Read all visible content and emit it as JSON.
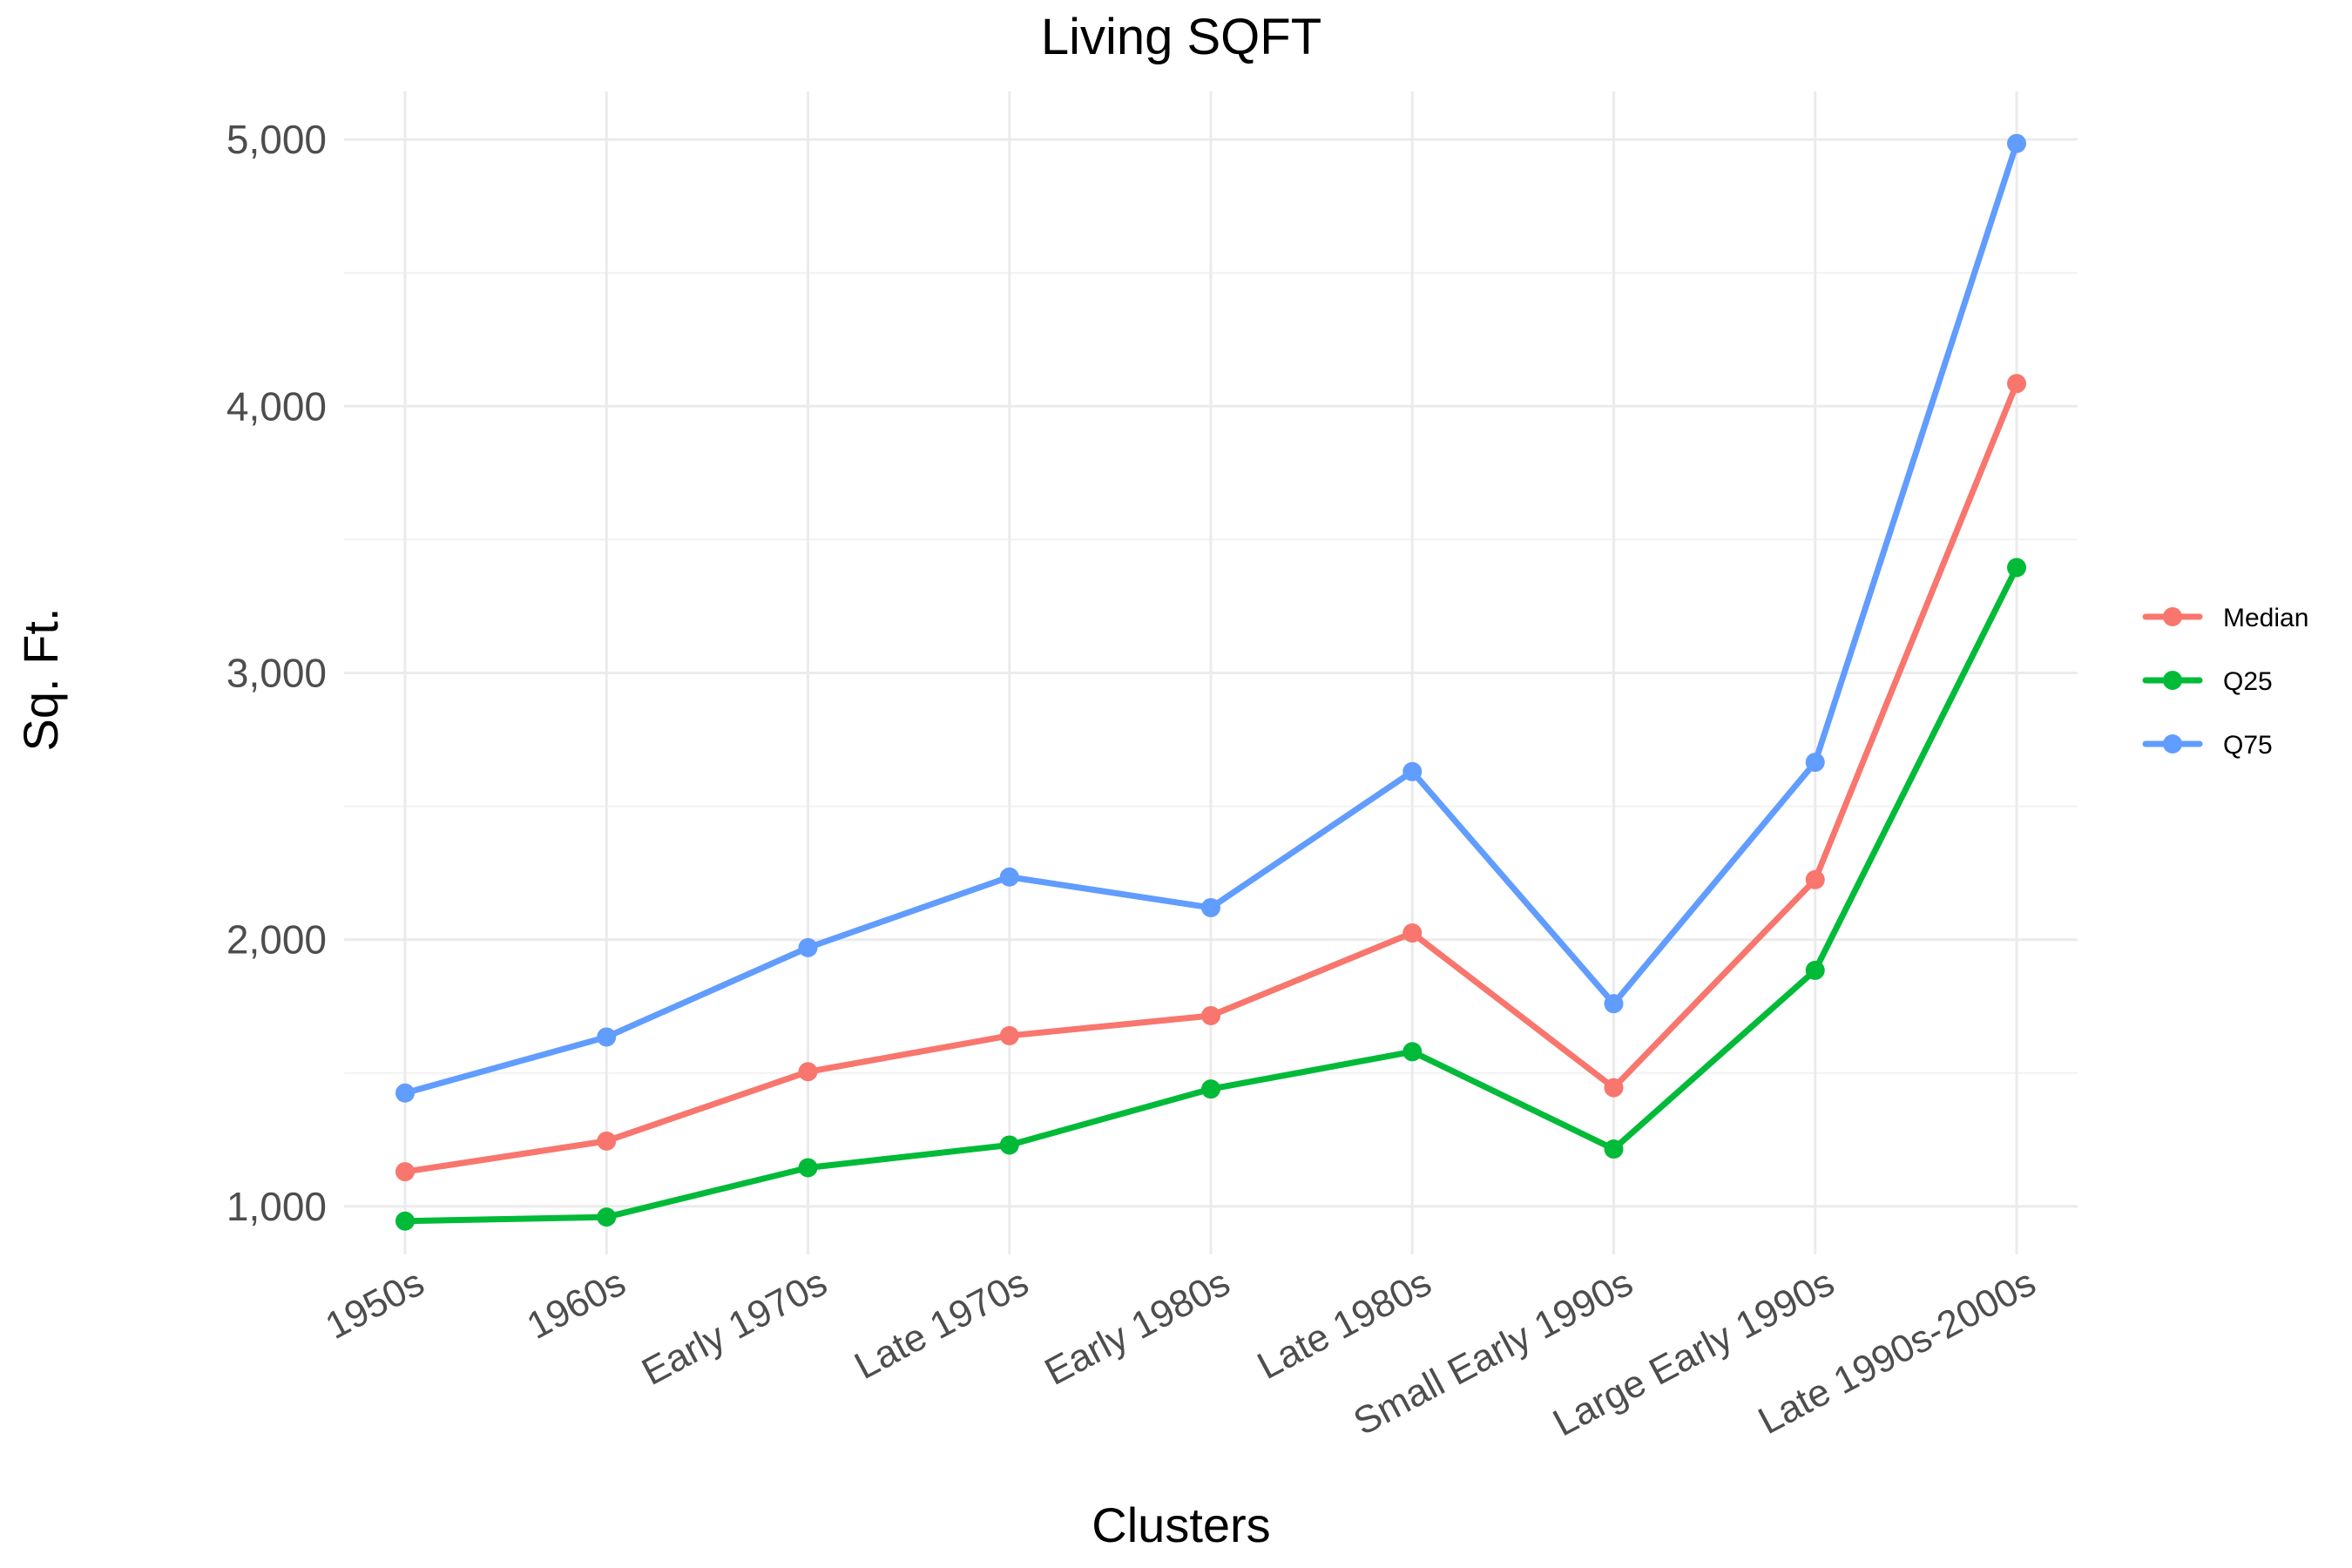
{
  "chart_data": {
    "type": "line",
    "title": "Living SQFT",
    "xlabel": "Clusters",
    "ylabel": "Sq. Ft.",
    "categories": [
      "1950s",
      "1960s",
      "Early 1970s",
      "Late 1970s",
      "Early 1980s",
      "Late 1980s",
      "Small Early 1990s",
      "Large Early 1990s",
      "Late 1990s-2000s"
    ],
    "ylim": [
      820,
      5180
    ],
    "yticks": [
      1000,
      2000,
      3000,
      4000,
      5000
    ],
    "ytick_labels": [
      "1,000",
      "2,000",
      "3,000",
      "4,000",
      "5,000"
    ],
    "grid": true,
    "legend_position": "right",
    "series": [
      {
        "name": "Median",
        "color": "#F8766D",
        "values": [
          1130,
          1245,
          1505,
          1640,
          1715,
          2025,
          1445,
          2225,
          4085
        ]
      },
      {
        "name": "Q25",
        "color": "#00BA38",
        "values": [
          945,
          960,
          1145,
          1230,
          1440,
          1580,
          1215,
          1885,
          3395
        ]
      },
      {
        "name": "Q75",
        "color": "#619CFF",
        "values": [
          1425,
          1635,
          1970,
          2235,
          2120,
          2630,
          1760,
          2665,
          4985
        ]
      }
    ]
  }
}
